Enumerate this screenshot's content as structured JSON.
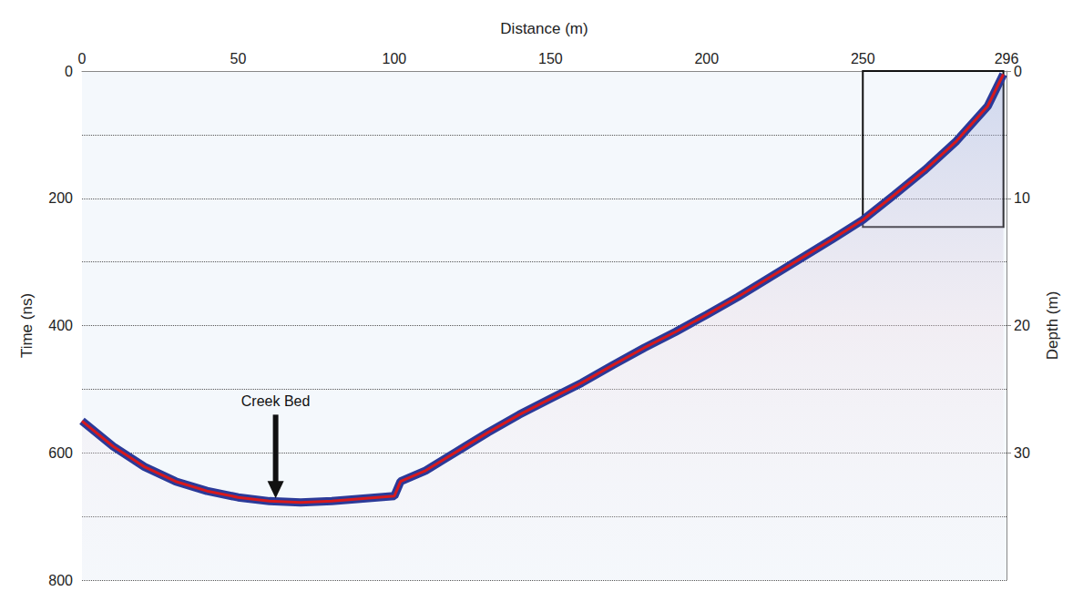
{
  "chart_data": {
    "type": "line",
    "x_label": "Distance (m)",
    "y_label": "Time (ns)",
    "y2_label": "Depth (m)",
    "x": [
      0,
      10,
      20,
      30,
      40,
      50,
      60,
      70,
      80,
      90,
      100,
      102,
      110,
      120,
      130,
      140,
      150,
      160,
      170,
      180,
      190,
      200,
      210,
      220,
      230,
      240,
      250,
      260,
      270,
      280,
      290,
      295
    ],
    "values": [
      550,
      590,
      622,
      645,
      660,
      670,
      676,
      678,
      676,
      672,
      668,
      645,
      628,
      598,
      568,
      540,
      515,
      490,
      462,
      435,
      410,
      383,
      355,
      325,
      295,
      265,
      234,
      195,
      155,
      110,
      55,
      5
    ],
    "color": "#2b3a99",
    "xlim": [
      0,
      296
    ],
    "xticks": [
      0,
      50,
      100,
      150,
      200,
      250
    ],
    "ylim": [
      0,
      800
    ],
    "yticks": [
      0,
      200,
      400,
      600,
      800
    ],
    "y2lim": [
      0,
      40
    ],
    "y2ticks": [
      0,
      10,
      20,
      30
    ],
    "grid": true,
    "annotations": [
      {
        "text": "Creek Bed",
        "x": 62,
        "y": 676
      }
    ],
    "box": {
      "x": [
        250,
        295
      ],
      "y": [
        0,
        245
      ]
    }
  }
}
